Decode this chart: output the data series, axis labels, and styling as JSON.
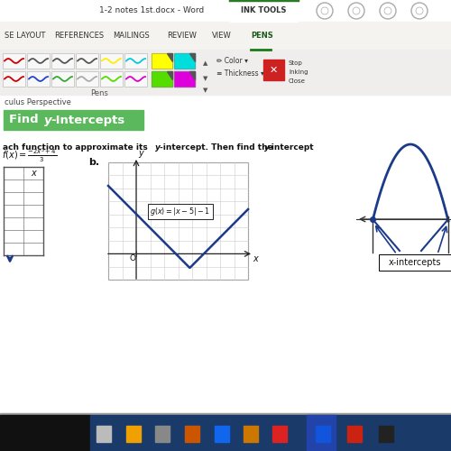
{
  "word_title": "1-2 notes 1st.docx - Word",
  "ink_tools_tab": "INK TOOLS",
  "pens_tab": "PENS",
  "menu_items": [
    "SE LAYOUT",
    "REFERENCES",
    "MAILINGS",
    "REVIEW",
    "VIEW",
    "PENS"
  ],
  "perspective_text": "culus Perspective",
  "instruction_text": "ach function to approximate its ",
  "instruction_text2": "y",
  "instruction_text3": "-intercept. Then find the ",
  "instruction_text4": "y",
  "instruction_text5": "-intercept",
  "label_b": "b.",
  "func_b": "g(x) = |x − 5| − 1",
  "x_intercepts_label": "x-intercepts",
  "bg_color": "#c8c8c8",
  "toolbar_bg": "#f0eeec",
  "ribbon_bg": "#f5f3f0",
  "doc_bg": "#ffffff",
  "graph_line_color": "#1a3a8a",
  "taskbar_dark": "#1a1a2e",
  "taskbar_blue": "#1a3a6a",
  "green_label_bg": "#5cb85c",
  "pen_row1_colors": [
    "#cc0000",
    "#555555",
    "#555555",
    "#555555",
    "#ffee00",
    "#00ccdd"
  ],
  "pen_row2_colors": [
    "#cc0000",
    "#2244cc",
    "#33aa33",
    "#aaaaaa",
    "#55dd00",
    "#dd00cc"
  ],
  "swatch_colors_row1": [
    "#ffff00",
    "#00dddd"
  ],
  "swatch_colors_row2": [
    "#55dd00",
    "#dd00dd"
  ],
  "menu_x_positions": [
    5,
    60,
    125,
    185,
    235,
    278
  ],
  "menu_fontsize": 6.0,
  "title_fontsize": 6.5,
  "ink_tools_color": "#2a7a2a"
}
